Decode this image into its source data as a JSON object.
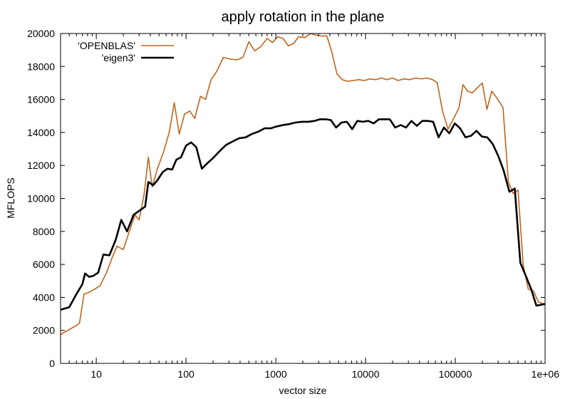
{
  "chart_data": {
    "type": "line",
    "title": "apply rotation in the plane",
    "xlabel": "vector size",
    "ylabel": "MFLOPS",
    "xscale": "log",
    "xlim": [
      4,
      1000000
    ],
    "ylim": [
      0,
      20000
    ],
    "xticks": [
      {
        "value": 10,
        "label": "10"
      },
      {
        "value": 100,
        "label": "100"
      },
      {
        "value": 1000,
        "label": "1000"
      },
      {
        "value": 10000,
        "label": "10000"
      },
      {
        "value": 100000,
        "label": "100000"
      },
      {
        "value": 1000000,
        "label": "1e+06"
      }
    ],
    "yticks": [
      {
        "value": 0,
        "label": "0"
      },
      {
        "value": 2000,
        "label": "2000"
      },
      {
        "value": 4000,
        "label": "4000"
      },
      {
        "value": 6000,
        "label": "6000"
      },
      {
        "value": 8000,
        "label": "8000"
      },
      {
        "value": 10000,
        "label": "10000"
      },
      {
        "value": 12000,
        "label": "12000"
      },
      {
        "value": 14000,
        "label": "14000"
      },
      {
        "value": 16000,
        "label": "16000"
      },
      {
        "value": 18000,
        "label": "18000"
      },
      {
        "value": 20000,
        "label": "20000"
      }
    ],
    "legend_position": "top-left",
    "grid": false,
    "series": [
      {
        "name": "'OPENBLAS'",
        "color": "#c0651b",
        "points": [
          [
            4,
            1750
          ],
          [
            5,
            2050
          ],
          [
            6,
            2300
          ],
          [
            6.5,
            2450
          ],
          [
            7.3,
            4200
          ],
          [
            8.2,
            4300
          ],
          [
            9.6,
            4500
          ],
          [
            11,
            4700
          ],
          [
            13,
            5500
          ],
          [
            15,
            6400
          ],
          [
            17,
            7100
          ],
          [
            20,
            6900
          ],
          [
            23,
            7900
          ],
          [
            27,
            9000
          ],
          [
            30,
            8700
          ],
          [
            34,
            10200
          ],
          [
            38,
            12500
          ],
          [
            42,
            10700
          ],
          [
            48,
            11800
          ],
          [
            56,
            12800
          ],
          [
            65,
            14000
          ],
          [
            74,
            15800
          ],
          [
            84,
            13900
          ],
          [
            96,
            15100
          ],
          [
            110,
            15300
          ],
          [
            125,
            14850
          ],
          [
            145,
            16200
          ],
          [
            165,
            16000
          ],
          [
            190,
            17200
          ],
          [
            220,
            17700
          ],
          [
            260,
            18550
          ],
          [
            310,
            18450
          ],
          [
            370,
            18400
          ],
          [
            430,
            18550
          ],
          [
            500,
            19500
          ],
          [
            580,
            18950
          ],
          [
            680,
            19200
          ],
          [
            800,
            19700
          ],
          [
            920,
            19450
          ],
          [
            1050,
            19800
          ],
          [
            1200,
            19700
          ],
          [
            1380,
            19250
          ],
          [
            1580,
            19400
          ],
          [
            1800,
            19800
          ],
          [
            2100,
            19750
          ],
          [
            2450,
            20000
          ],
          [
            2800,
            19900
          ],
          [
            3200,
            19850
          ],
          [
            3700,
            19850
          ],
          [
            4200,
            18900
          ],
          [
            4800,
            17550
          ],
          [
            5500,
            17200
          ],
          [
            6300,
            17100
          ],
          [
            7300,
            17150
          ],
          [
            8400,
            17200
          ],
          [
            9700,
            17150
          ],
          [
            11200,
            17250
          ],
          [
            13000,
            17200
          ],
          [
            15000,
            17300
          ],
          [
            17300,
            17200
          ],
          [
            20000,
            17300
          ],
          [
            23000,
            17150
          ],
          [
            27000,
            17250
          ],
          [
            31000,
            17200
          ],
          [
            36000,
            17300
          ],
          [
            42000,
            17250
          ],
          [
            48000,
            17300
          ],
          [
            56000,
            17200
          ],
          [
            63000,
            17000
          ],
          [
            72000,
            15300
          ],
          [
            83000,
            14200
          ],
          [
            95000,
            14800
          ],
          [
            110000,
            15500
          ],
          [
            122000,
            16900
          ],
          [
            137000,
            16500
          ],
          [
            155000,
            16400
          ],
          [
            175000,
            16700
          ],
          [
            200000,
            17000
          ],
          [
            225000,
            15400
          ],
          [
            255000,
            16500
          ],
          [
            290000,
            16100
          ],
          [
            340000,
            15500
          ],
          [
            390000,
            11000
          ],
          [
            440000,
            10300
          ],
          [
            500000,
            10500
          ],
          [
            570000,
            6000
          ],
          [
            650000,
            4500
          ],
          [
            740000,
            4400
          ],
          [
            850000,
            3700
          ],
          [
            1000000,
            3600
          ]
        ]
      },
      {
        "name": "'eigen3'",
        "color": "#000000",
        "points": [
          [
            4,
            3250
          ],
          [
            5,
            3400
          ],
          [
            6,
            4200
          ],
          [
            7,
            4800
          ],
          [
            7.5,
            5450
          ],
          [
            8.3,
            5250
          ],
          [
            9.2,
            5300
          ],
          [
            10.5,
            5500
          ],
          [
            12,
            6600
          ],
          [
            14,
            6550
          ],
          [
            16.5,
            7500
          ],
          [
            19,
            8700
          ],
          [
            22,
            8000
          ],
          [
            26,
            9000
          ],
          [
            31,
            9300
          ],
          [
            35,
            9500
          ],
          [
            38,
            11000
          ],
          [
            43,
            10800
          ],
          [
            48,
            11100
          ],
          [
            55,
            11600
          ],
          [
            62,
            11800
          ],
          [
            70,
            11750
          ],
          [
            78,
            12350
          ],
          [
            88,
            12500
          ],
          [
            100,
            13200
          ],
          [
            114,
            13400
          ],
          [
            130,
            13100
          ],
          [
            150,
            11800
          ],
          [
            170,
            12100
          ],
          [
            200,
            12450
          ],
          [
            240,
            12900
          ],
          [
            280,
            13250
          ],
          [
            330,
            13450
          ],
          [
            390,
            13650
          ],
          [
            460,
            13700
          ],
          [
            540,
            13900
          ],
          [
            640,
            14050
          ],
          [
            750,
            14250
          ],
          [
            880,
            14250
          ],
          [
            1000,
            14350
          ],
          [
            1200,
            14450
          ],
          [
            1400,
            14500
          ],
          [
            1650,
            14600
          ],
          [
            1950,
            14650
          ],
          [
            2300,
            14650
          ],
          [
            2700,
            14700
          ],
          [
            3100,
            14800
          ],
          [
            3600,
            14800
          ],
          [
            4100,
            14750
          ],
          [
            4700,
            14300
          ],
          [
            5400,
            14600
          ],
          [
            6200,
            14650
          ],
          [
            7100,
            14200
          ],
          [
            8100,
            14700
          ],
          [
            9300,
            14650
          ],
          [
            10700,
            14700
          ],
          [
            12300,
            14550
          ],
          [
            14100,
            14800
          ],
          [
            16200,
            14800
          ],
          [
            18600,
            14800
          ],
          [
            21400,
            14300
          ],
          [
            24600,
            14450
          ],
          [
            28200,
            14300
          ],
          [
            32500,
            14700
          ],
          [
            37300,
            14400
          ],
          [
            42900,
            14700
          ],
          [
            49300,
            14700
          ],
          [
            56600,
            14650
          ],
          [
            65000,
            13700
          ],
          [
            74700,
            14300
          ],
          [
            85800,
            13950
          ],
          [
            98600,
            14550
          ],
          [
            113000,
            14250
          ],
          [
            130000,
            13700
          ],
          [
            150000,
            13800
          ],
          [
            172000,
            14100
          ],
          [
            198000,
            13750
          ],
          [
            227000,
            13700
          ],
          [
            261000,
            13300
          ],
          [
            300000,
            12600
          ],
          [
            345000,
            11700
          ],
          [
            400000,
            10400
          ],
          [
            460000,
            10600
          ],
          [
            530000,
            6100
          ],
          [
            610000,
            5300
          ],
          [
            700000,
            4500
          ],
          [
            800000,
            3500
          ],
          [
            900000,
            3550
          ],
          [
            1000000,
            3600
          ]
        ]
      }
    ]
  }
}
